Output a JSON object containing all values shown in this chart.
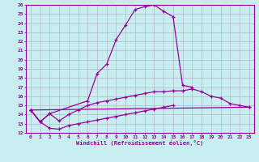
{
  "xlabel": "Windchill (Refroidissement éolien,°C)",
  "x": [
    0,
    1,
    2,
    3,
    4,
    5,
    6,
    7,
    8,
    9,
    10,
    11,
    12,
    13,
    14,
    15,
    16,
    17,
    18,
    19,
    20,
    21,
    22,
    23
  ],
  "line1": [
    14.5,
    13.2,
    14.1,
    null,
    null,
    null,
    15.5,
    18.5,
    19.5,
    22.2,
    23.8,
    25.5,
    25.8,
    26.0,
    25.3,
    24.7,
    17.2,
    17.0,
    null,
    null,
    null,
    null,
    null,
    null
  ],
  "line2": [
    14.5,
    null,
    null,
    null,
    null,
    null,
    null,
    null,
    null,
    null,
    null,
    null,
    null,
    null,
    null,
    null,
    null,
    null,
    null,
    null,
    null,
    null,
    null,
    14.8
  ],
  "line3": [
    14.5,
    13.2,
    14.1,
    13.3,
    14.0,
    14.5,
    15.0,
    15.3,
    15.5,
    15.7,
    15.9,
    16.1,
    16.3,
    16.5,
    16.5,
    16.6,
    16.6,
    16.8,
    16.5,
    16.0,
    15.8,
    15.2,
    15.0,
    14.8
  ],
  "line4": [
    14.5,
    13.2,
    12.5,
    12.4,
    12.8,
    13.0,
    13.2,
    13.4,
    13.6,
    13.8,
    14.0,
    14.2,
    14.4,
    14.6,
    14.8,
    15.0,
    null,
    null,
    null,
    null,
    null,
    null,
    null,
    null
  ],
  "line_color": "#990099",
  "bg_color": "#c8eef0",
  "grid_color": "#b0b8cc",
  "ylim": [
    12,
    26
  ],
  "xlim": [
    -0.5,
    23.5
  ],
  "yticks": [
    12,
    13,
    14,
    15,
    16,
    17,
    18,
    19,
    20,
    21,
    22,
    23,
    24,
    25,
    26
  ],
  "xticks": [
    0,
    1,
    2,
    3,
    4,
    5,
    6,
    7,
    8,
    9,
    10,
    11,
    12,
    13,
    14,
    15,
    16,
    17,
    18,
    19,
    20,
    21,
    22,
    23
  ]
}
